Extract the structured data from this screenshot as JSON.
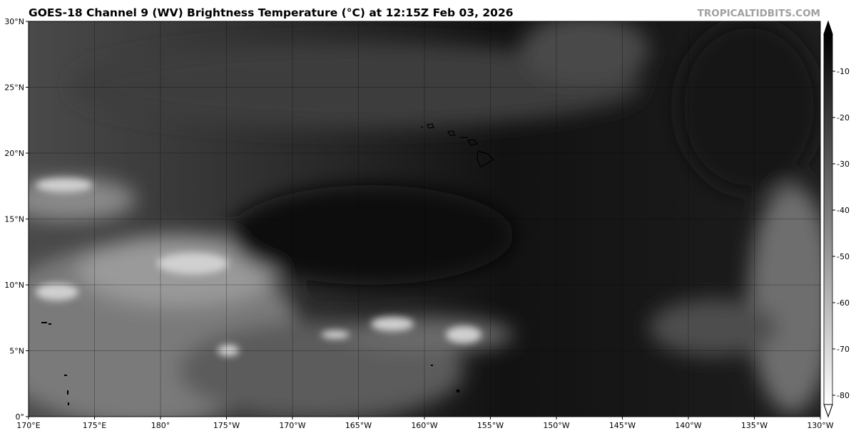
{
  "header": {
    "title": "GOES-18 Channel 9 (WV) Brightness Temperature (°C) at 12:15Z Feb 03, 2026",
    "brand": "TROPICALTIDBITS.COM"
  },
  "map": {
    "projection": "equirectangular",
    "lon_range": [
      "170°E",
      "130°W"
    ],
    "lat_range": [
      "0°",
      "30°N"
    ],
    "x_ticks": [
      "170°E",
      "175°E",
      "180°",
      "175°W",
      "170°W",
      "165°W",
      "160°W",
      "155°W",
      "150°W",
      "145°W",
      "140°W",
      "135°W",
      "130°W"
    ],
    "y_ticks": [
      "0°",
      "5°N",
      "10°N",
      "15°N",
      "20°N",
      "25°N",
      "30°N"
    ],
    "gridlines": true,
    "features": [
      "Hawaiian Islands coastline",
      "Marshall Islands",
      "Kiribati"
    ]
  },
  "colorbar": {
    "ticks": [
      "-10",
      "-20",
      "-30",
      "-40",
      "-50",
      "-60",
      "-70",
      "-80"
    ],
    "range": [
      -82,
      -2
    ],
    "extend": "both",
    "colormap": "grayscale, white=cold, black=warm"
  }
}
